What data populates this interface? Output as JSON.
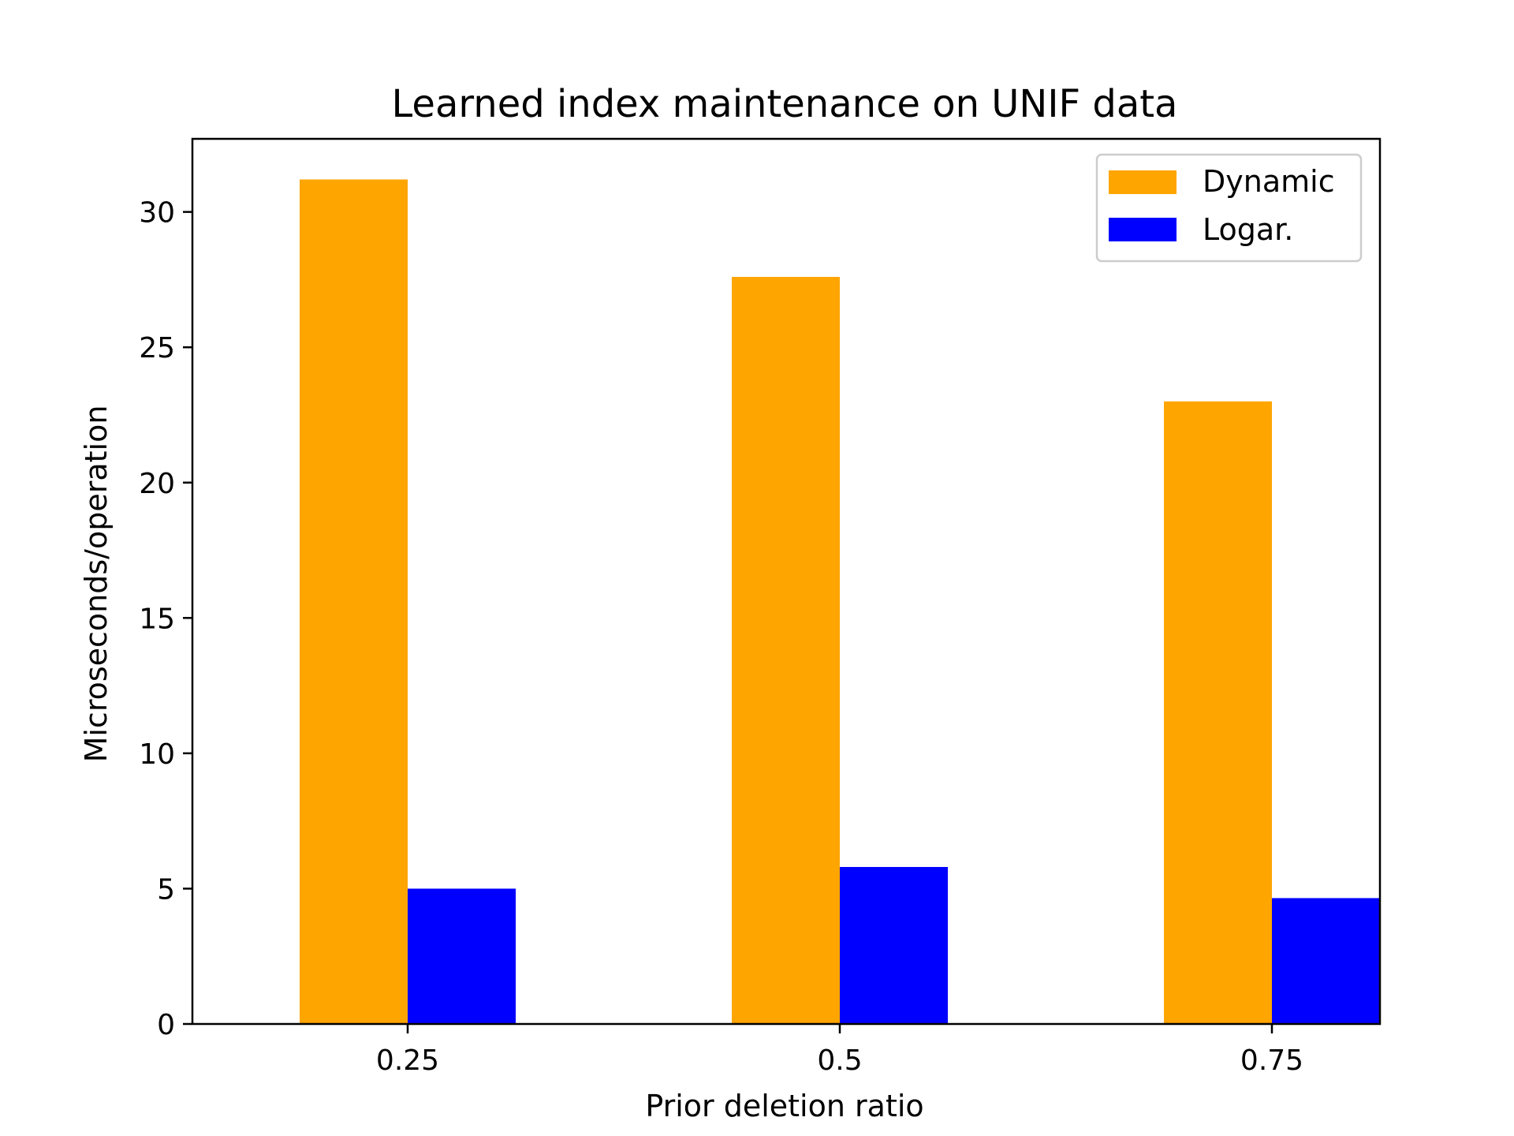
{
  "chart_data": {
    "type": "bar",
    "title": "Learned index maintenance on UNIF data",
    "xlabel": "Prior deletion ratio",
    "ylabel": "Microseconds/operation",
    "categories": [
      "0.25",
      "0.5",
      "0.75"
    ],
    "series": [
      {
        "name": "Dynamic",
        "color": "#FFA500",
        "values": [
          31.2,
          27.6,
          23.0
        ]
      },
      {
        "name": "Logar.",
        "color": "#0000FF",
        "values": [
          5.0,
          5.8,
          4.65
        ]
      }
    ],
    "ylim": [
      0,
      32.7
    ],
    "yticks": [
      "0",
      "5",
      "10",
      "15",
      "20",
      "25",
      "30"
    ],
    "grid": false,
    "legend_position": "top-right"
  }
}
